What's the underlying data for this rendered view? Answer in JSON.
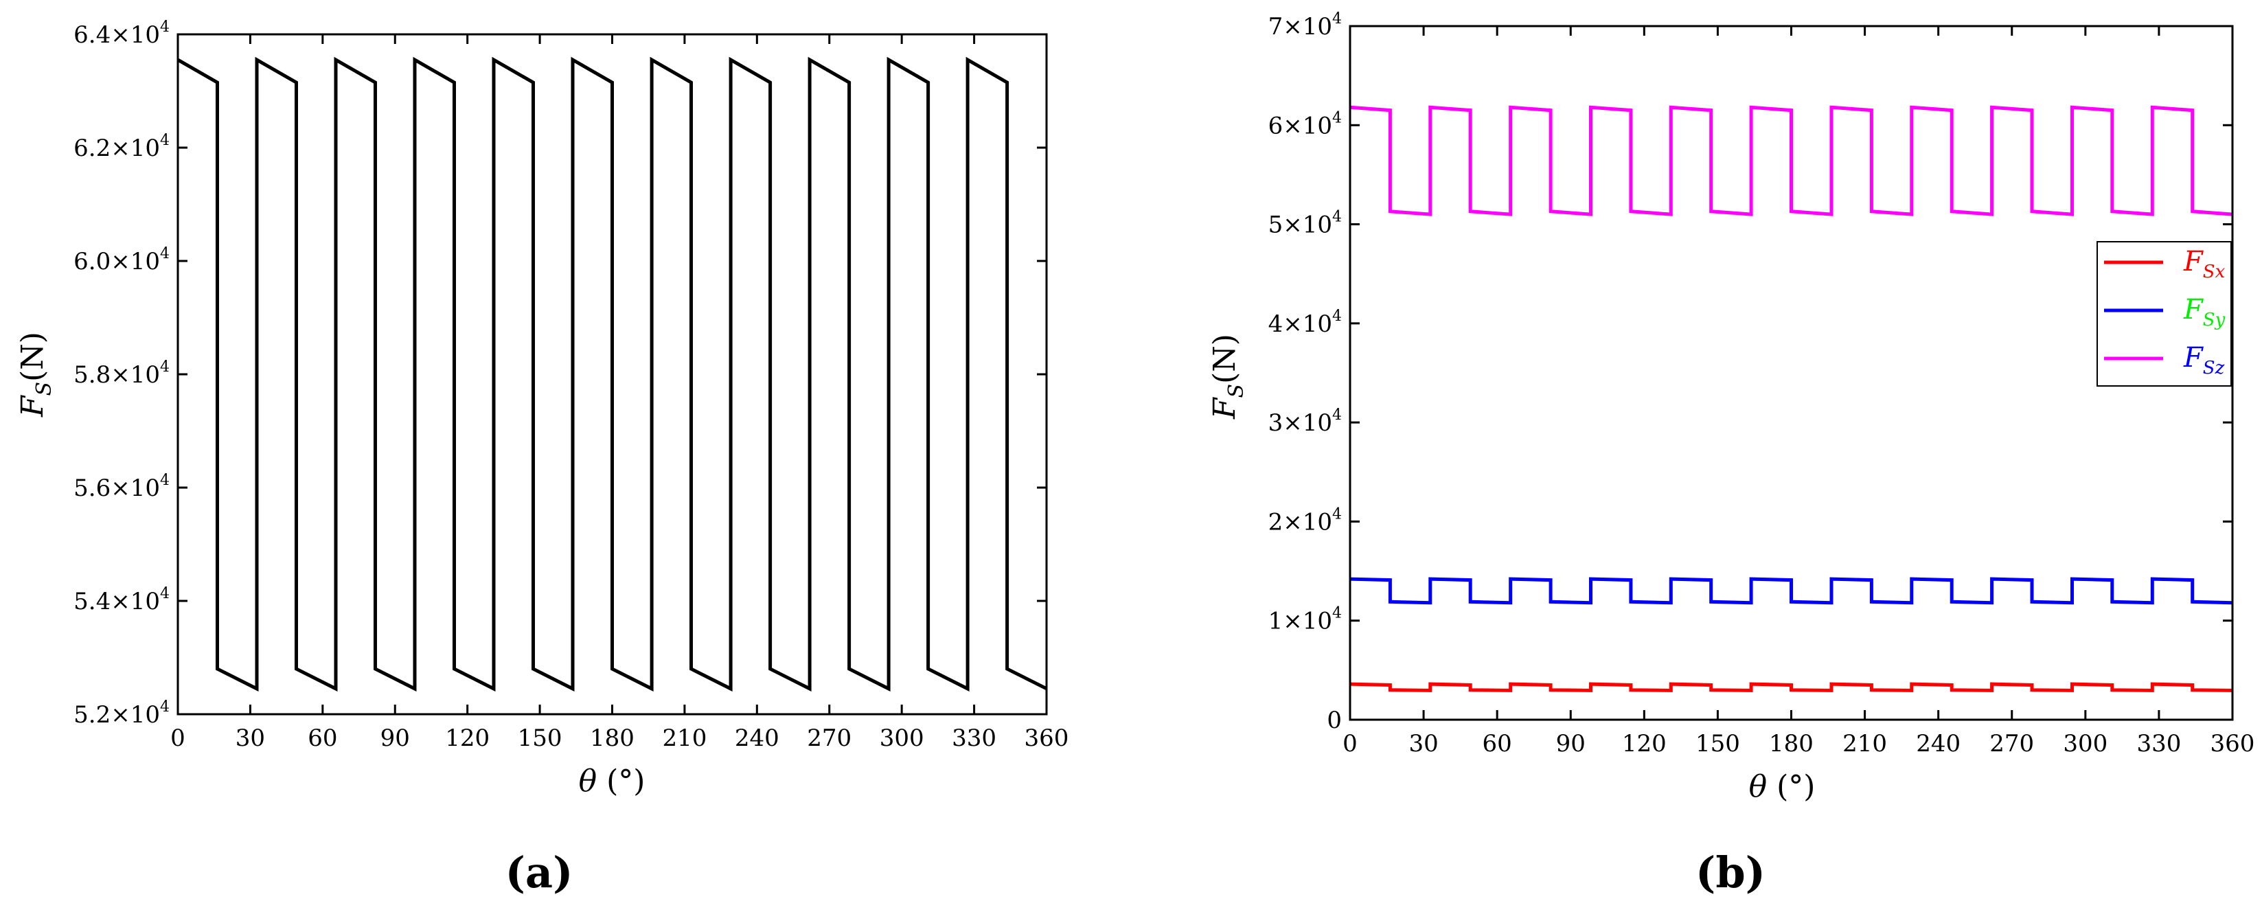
{
  "panels": [
    {
      "id": "a",
      "caption": "(a)",
      "ylabel_main": "F",
      "ylabel_sub": "S",
      "ylabel_unit": "(N)",
      "xlabel_symbol": "θ",
      "xlabel_unit": "(°)",
      "line_color": "#000000",
      "xticks": [
        0,
        30,
        60,
        90,
        120,
        150,
        180,
        210,
        240,
        270,
        300,
        330,
        360
      ],
      "yticks": [
        {
          "value": 52000,
          "mant": "5.2×10",
          "exp": "4"
        },
        {
          "value": 54000,
          "mant": "5.4×10",
          "exp": "4"
        },
        {
          "value": 56000,
          "mant": "5.6×10",
          "exp": "4"
        },
        {
          "value": 58000,
          "mant": "5.8×10",
          "exp": "4"
        },
        {
          "value": 60000,
          "mant": "6.0×10",
          "exp": "4"
        },
        {
          "value": 62000,
          "mant": "6.2×10",
          "exp": "4"
        },
        {
          "value": 64000,
          "mant": "6.4×10",
          "exp": "4"
        }
      ]
    },
    {
      "id": "b",
      "caption": "(b)",
      "ylabel_main": "F",
      "ylabel_sub": "S",
      "ylabel_unit": "(N)",
      "xlabel_symbol": "θ",
      "xlabel_unit": "(°)",
      "xticks": [
        0,
        30,
        60,
        90,
        120,
        150,
        180,
        210,
        240,
        270,
        300,
        330,
        360
      ],
      "yticks": [
        {
          "value": 0,
          "mant": "0",
          "exp": ""
        },
        {
          "value": 10000,
          "mant": "1×10",
          "exp": "4"
        },
        {
          "value": 20000,
          "mant": "2×10",
          "exp": "4"
        },
        {
          "value": 30000,
          "mant": "3×10",
          "exp": "4"
        },
        {
          "value": 40000,
          "mant": "4×10",
          "exp": "4"
        },
        {
          "value": 50000,
          "mant": "5×10",
          "exp": "4"
        },
        {
          "value": 60000,
          "mant": "6×10",
          "exp": "4"
        },
        {
          "value": 70000,
          "mant": "7×10",
          "exp": "4"
        }
      ],
      "legend": [
        {
          "main": "F",
          "sub": "Sx",
          "line_color": "#ff0000",
          "text_color": "#ff0000"
        },
        {
          "main": "F",
          "sub": "Sy",
          "line_color": "#0000ff",
          "text_color": "#00ee00"
        },
        {
          "main": "F",
          "sub": "Sz",
          "line_color": "#ff00ff",
          "text_color": "#0000ff"
        }
      ]
    }
  ],
  "chart_data": [
    {
      "type": "line",
      "panel": "a",
      "xlabel": "θ (°)",
      "ylabel": "F_S (N)",
      "xlim": [
        0,
        360
      ],
      "ylim": [
        52000,
        64000
      ],
      "grid": false,
      "period_deg": 32.73,
      "drop_at_deg": 16.36,
      "series": [
        {
          "name": "",
          "color": "#000000",
          "x": [
            0,
            16.36,
            16.36,
            32.73,
            32.73
          ],
          "y": [
            63550,
            63150,
            52800,
            52450,
            63550
          ],
          "repeat": "periodic over 0–360"
        }
      ]
    },
    {
      "type": "line",
      "panel": "b",
      "xlabel": "θ (°)",
      "ylabel": "F_S (N)",
      "xlim": [
        0,
        360
      ],
      "ylim": [
        0,
        70000
      ],
      "grid": false,
      "legend_position": "right",
      "period_deg": 32.73,
      "drop_at_deg": 16.36,
      "series": [
        {
          "name": "F_Sx",
          "color": "#ff0000",
          "x": [
            0,
            16.36,
            16.36,
            32.73,
            32.73
          ],
          "y": [
            3600,
            3500,
            3000,
            2950,
            3600
          ],
          "repeat": "periodic over 0–360"
        },
        {
          "name": "F_Sy",
          "color": "#0000ff",
          "x": [
            0,
            16.36,
            16.36,
            32.73,
            32.73
          ],
          "y": [
            14200,
            14100,
            11900,
            11800,
            14200
          ],
          "repeat": "periodic over 0–360"
        },
        {
          "name": "F_Sz",
          "color": "#ff00ff",
          "x": [
            0,
            16.36,
            16.36,
            32.73,
            32.73
          ],
          "y": [
            61800,
            61500,
            51300,
            51000,
            61800
          ],
          "repeat": "periodic over 0–360"
        }
      ]
    }
  ]
}
